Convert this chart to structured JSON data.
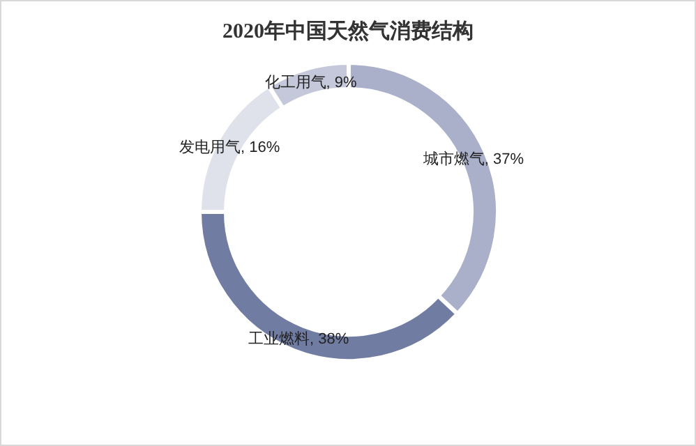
{
  "chart_data": {
    "type": "donut",
    "title": "2020年中国天然气消费结构",
    "categories": [
      "城市燃气",
      "工业燃料",
      "发电用气",
      "化工用气"
    ],
    "values": [
      37,
      38,
      16,
      9
    ],
    "value_labels": [
      "37%",
      "38%",
      "16%",
      "9%"
    ],
    "colors": [
      "#abb0ca",
      "#717ca2",
      "#dfe2ea",
      "#c4c8da"
    ]
  }
}
